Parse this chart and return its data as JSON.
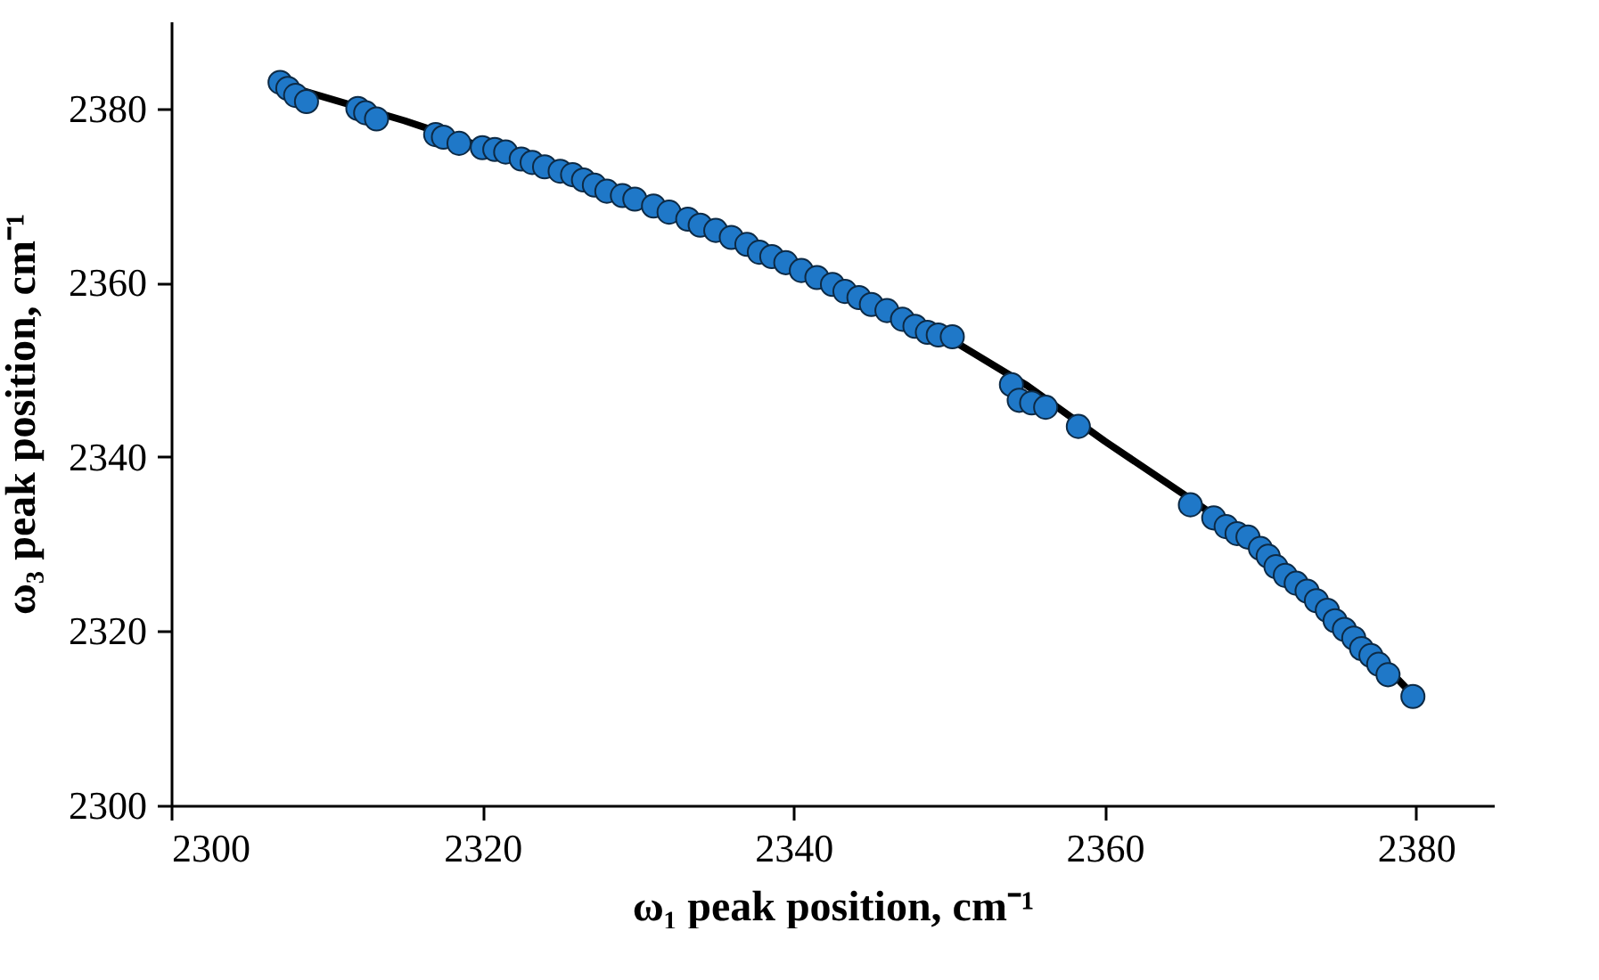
{
  "chart_data": {
    "type": "scatter",
    "xlabel": "ω₁ peak position, cm⁻¹",
    "ylabel": "ω₃ peak position, cm⁻¹",
    "xlim": [
      2300,
      2385
    ],
    "xticks": [
      2300,
      2320,
      2340,
      2360,
      2380
    ],
    "ylim": [
      2300,
      2390
    ],
    "yticks": [
      2300,
      2320,
      2340,
      2360,
      2380
    ],
    "grid": false,
    "series": [
      {
        "type": "line",
        "color": "#000000",
        "line_style": "solid",
        "marker": "none",
        "x": [
          2307,
          2315,
          2320,
          2330,
          2340,
          2350,
          2355,
          2360,
          2365,
          2370,
          2375,
          2380
        ],
        "values": [
          2382.8,
          2378.6,
          2375.6,
          2369.4,
          2361.9,
          2353.6,
          2348.2,
          2341.8,
          2335.8,
          2329.6,
          2321.6,
          2312.3
        ]
      },
      {
        "color": "#1f78c8",
        "marker": "circle",
        "x": [
          2307,
          2307.5,
          2308,
          2308.7,
          2312,
          2312.5,
          2313.2,
          2317,
          2317.5,
          2318.5,
          2320,
          2320.8,
          2321.5,
          2322.5,
          2323.2,
          2324,
          2325,
          2325.8,
          2326.5,
          2327.2,
          2328,
          2329,
          2329.8,
          2331,
          2332,
          2333.2,
          2334,
          2335,
          2336,
          2337,
          2337.8,
          2338.6,
          2339.5,
          2340.5,
          2341.5,
          2342.5,
          2343.3,
          2344.2,
          2345,
          2346,
          2347,
          2347.8,
          2348.6,
          2349.3,
          2350.2,
          2354,
          2354.5,
          2355.3,
          2356.2,
          2358.3,
          2365.5,
          2367,
          2367.8,
          2368.5,
          2369.2,
          2370,
          2370.5,
          2371,
          2371.6,
          2372.3,
          2373,
          2373.6,
          2374.3,
          2374.8,
          2375.4,
          2376,
          2376.5,
          2377.1,
          2377.6,
          2378.2,
          2379.8
        ],
        "values": [
          2383,
          2382.3,
          2381.5,
          2380.8,
          2380,
          2379.5,
          2378.8,
          2377,
          2376.7,
          2376,
          2375.5,
          2375.3,
          2375,
          2374.2,
          2373.8,
          2373.3,
          2372.8,
          2372.4,
          2371.8,
          2371.2,
          2370.5,
          2370,
          2369.6,
          2368.8,
          2368.1,
          2367.3,
          2366.6,
          2366,
          2365.2,
          2364.4,
          2363.5,
          2363,
          2362.3,
          2361.4,
          2360.6,
          2359.8,
          2359,
          2358.3,
          2357.5,
          2356.8,
          2355.8,
          2355,
          2354.3,
          2354,
          2353.8,
          2348.3,
          2346.5,
          2346.2,
          2345.7,
          2343.5,
          2334.5,
          2333,
          2332,
          2331.2,
          2330.8,
          2329.5,
          2328.6,
          2327.4,
          2326.4,
          2325.5,
          2324.6,
          2323.5,
          2322.4,
          2321.2,
          2320.2,
          2319.2,
          2318,
          2317.2,
          2316.2,
          2315,
          2312.5
        ]
      }
    ]
  }
}
